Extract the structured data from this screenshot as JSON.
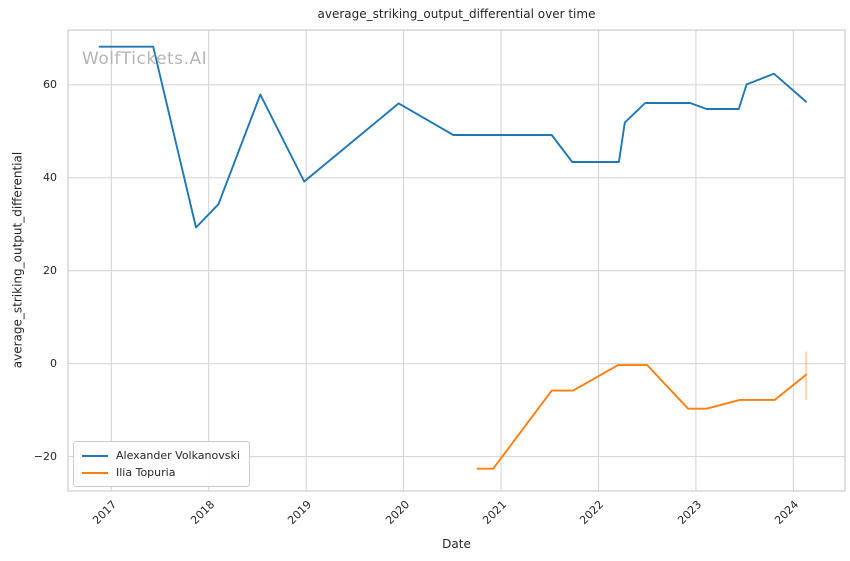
{
  "figure": {
    "title": "average_striking_output_differential over time",
    "watermark": "WolfTickets.AI"
  },
  "axes": {
    "xlabel": "Date",
    "ylabel": "average_striking_output_differential"
  },
  "legend": {
    "items": [
      {
        "label": "Alexander Volkanovski",
        "color": "#1f77b4"
      },
      {
        "label": "Ilia Topuria",
        "color": "#ff7f0e"
      }
    ]
  },
  "colors": {
    "grid": "#d2d2d2",
    "spine": "#cccccc",
    "text": "#262626",
    "watermark": "#b5b5b5",
    "series_blue": "#1f77b4",
    "series_orange": "#ff7f0e"
  },
  "chart_data": {
    "type": "line",
    "title": "average_striking_output_differential over time",
    "xlabel": "Date",
    "ylabel": "average_striking_output_differential",
    "xlim": [
      2016.556,
      2024.53
    ],
    "ylim": [
      -27.4,
      71.8
    ],
    "xticks": [
      2017,
      2018,
      2019,
      2020,
      2021,
      2022,
      2023,
      2024
    ],
    "yticks": [
      -20,
      0,
      20,
      40,
      60
    ],
    "grid": true,
    "legend_position": "lower left",
    "series": [
      {
        "name": "Alexander Volkanovski",
        "color": "#1f77b4",
        "points": [
          [
            2016.88,
            68.2
          ],
          [
            2017.43,
            68.2
          ],
          [
            2017.87,
            29.3
          ],
          [
            2018.1,
            34.3
          ],
          [
            2018.53,
            57.9
          ],
          [
            2018.98,
            39.2
          ],
          [
            2019.95,
            56.0
          ],
          [
            2020.51,
            49.2
          ],
          [
            2021.52,
            49.2
          ],
          [
            2021.73,
            43.4
          ],
          [
            2022.21,
            43.4
          ],
          [
            2022.27,
            51.9
          ],
          [
            2022.48,
            56.1
          ],
          [
            2022.94,
            56.1
          ],
          [
            2023.11,
            54.8
          ],
          [
            2023.44,
            54.8
          ],
          [
            2023.52,
            60.1
          ],
          [
            2023.8,
            62.4
          ],
          [
            2024.13,
            56.4
          ]
        ]
      },
      {
        "name": "Ilia Topuria",
        "color": "#ff7f0e",
        "points": [
          [
            2020.76,
            -22.6
          ],
          [
            2020.92,
            -22.6
          ],
          [
            2021.52,
            -5.8
          ],
          [
            2021.74,
            -5.8
          ],
          [
            2022.2,
            -0.3
          ],
          [
            2022.5,
            -0.3
          ],
          [
            2022.92,
            -9.7
          ],
          [
            2023.11,
            -9.7
          ],
          [
            2023.45,
            -7.8
          ],
          [
            2023.81,
            -7.8
          ],
          [
            2024.13,
            -2.4
          ]
        ],
        "errorbar": {
          "x": 2024.13,
          "y_low": -7.8,
          "y_high": 2.6
        }
      }
    ]
  }
}
